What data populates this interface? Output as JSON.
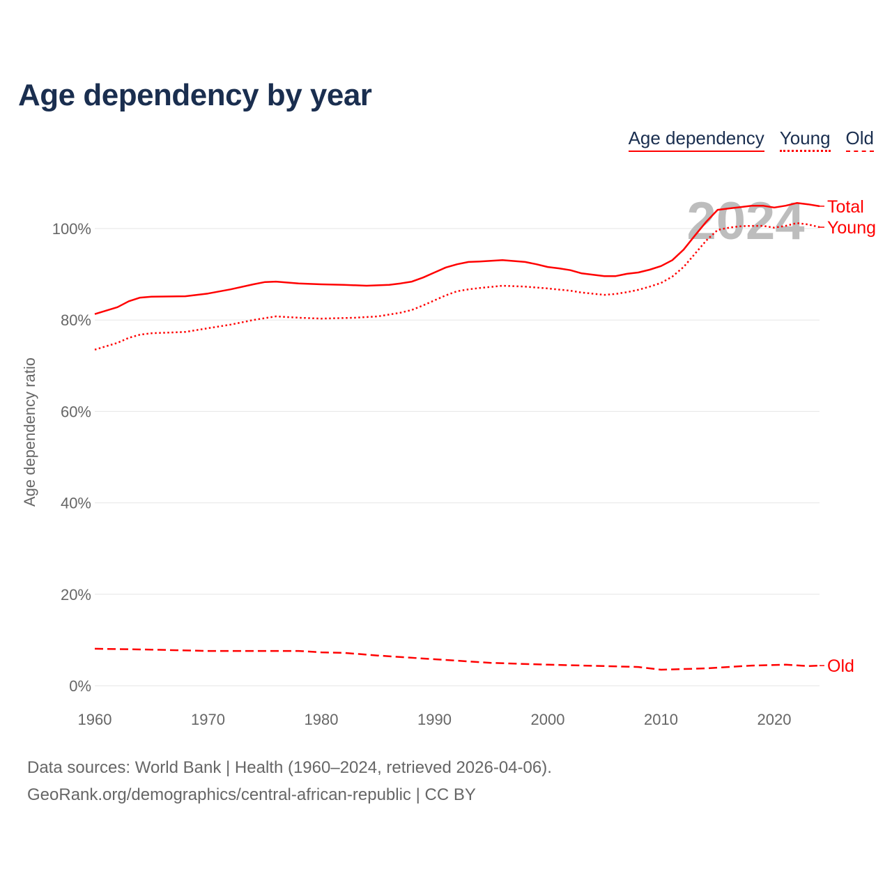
{
  "title": "Age dependency by year",
  "legend": [
    "Age dependency",
    "Young",
    "Old"
  ],
  "watermark_year": "2024",
  "sources": "Data sources: World Bank | Health (1960–2024, retrieved 2026-04-06).",
  "credit": "GeoRank.org/demographics/central-african-republic | CC BY",
  "chart_data": {
    "type": "line",
    "title": "Age dependency by year",
    "xlabel": "",
    "ylabel": "Age dependency ratio",
    "xlim": [
      1960,
      2024
    ],
    "ylim": [
      0,
      110
    ],
    "x_ticks": [
      "1960",
      "1970",
      "1980",
      "1990",
      "2000",
      "2010",
      "2020"
    ],
    "y_ticks": [
      "0%",
      "20%",
      "40%",
      "60%",
      "80%",
      "100%"
    ],
    "grid": true,
    "series": [
      {
        "name": "Total",
        "style": "solid",
        "color": "#ff0000",
        "x": [
          1960,
          1962,
          1963,
          1964,
          1965,
          1968,
          1970,
          1972,
          1974,
          1975,
          1976,
          1978,
          1980,
          1982,
          1984,
          1986,
          1987,
          1988,
          1989,
          1990,
          1991,
          1992,
          1993,
          1994,
          1996,
          1998,
          1999,
          2000,
          2001,
          2002,
          2003,
          2005,
          2006,
          2007,
          2008,
          2009,
          2010,
          2011,
          2012,
          2013,
          2014,
          2015,
          2016,
          2017,
          2018,
          2019,
          2020,
          2021,
          2022,
          2023,
          2024
        ],
        "values": [
          81.3,
          82.8,
          84.1,
          84.9,
          85.1,
          85.2,
          85.8,
          86.7,
          87.8,
          88.3,
          88.4,
          88.0,
          87.8,
          87.7,
          87.5,
          87.7,
          88.0,
          88.4,
          89.3,
          90.4,
          91.5,
          92.2,
          92.7,
          92.8,
          93.1,
          92.7,
          92.2,
          91.6,
          91.3,
          90.9,
          90.2,
          89.6,
          89.6,
          90.1,
          90.4,
          91.0,
          91.8,
          93.1,
          95.4,
          98.5,
          101.5,
          104.1,
          104.4,
          104.7,
          105.0,
          105.0,
          104.6,
          105.0,
          105.6,
          105.3,
          104.9
        ]
      },
      {
        "name": "Young",
        "style": "dotted",
        "color": "#ff0000",
        "x": [
          1960,
          1962,
          1963,
          1964,
          1965,
          1968,
          1970,
          1972,
          1974,
          1976,
          1978,
          1980,
          1983,
          1985,
          1987,
          1988,
          1989,
          1990,
          1991,
          1992,
          1993,
          1994,
          1996,
          1998,
          2000,
          2002,
          2003,
          2005,
          2006,
          2007,
          2008,
          2009,
          2010,
          2011,
          2012,
          2013,
          2014,
          2015,
          2016,
          2017,
          2018,
          2019,
          2020,
          2021,
          2022,
          2023,
          2024
        ],
        "values": [
          73.5,
          75.0,
          76.1,
          76.8,
          77.1,
          77.4,
          78.2,
          79.0,
          80.0,
          80.8,
          80.5,
          80.3,
          80.5,
          80.8,
          81.6,
          82.2,
          83.2,
          84.3,
          85.4,
          86.3,
          86.7,
          87.0,
          87.5,
          87.3,
          86.9,
          86.4,
          86.0,
          85.5,
          85.7,
          86.1,
          86.6,
          87.3,
          88.1,
          89.5,
          91.6,
          94.5,
          97.4,
          99.7,
          100.2,
          100.5,
          100.6,
          100.6,
          100.2,
          100.6,
          101.2,
          100.9,
          100.3
        ]
      },
      {
        "name": "Old",
        "style": "dashed",
        "color": "#ff0000",
        "x": [
          1960,
          1965,
          1970,
          1975,
          1978,
          1980,
          1982,
          1985,
          1990,
          1995,
          2000,
          2005,
          2008,
          2010,
          2014,
          2018,
          2021,
          2023,
          2024
        ],
        "values": [
          8.1,
          7.9,
          7.6,
          7.6,
          7.6,
          7.3,
          7.2,
          6.6,
          5.8,
          5.0,
          4.6,
          4.3,
          4.1,
          3.5,
          3.8,
          4.4,
          4.6,
          4.3,
          4.4
        ]
      }
    ],
    "end_labels": [
      "Total",
      "Young",
      "Old"
    ]
  }
}
